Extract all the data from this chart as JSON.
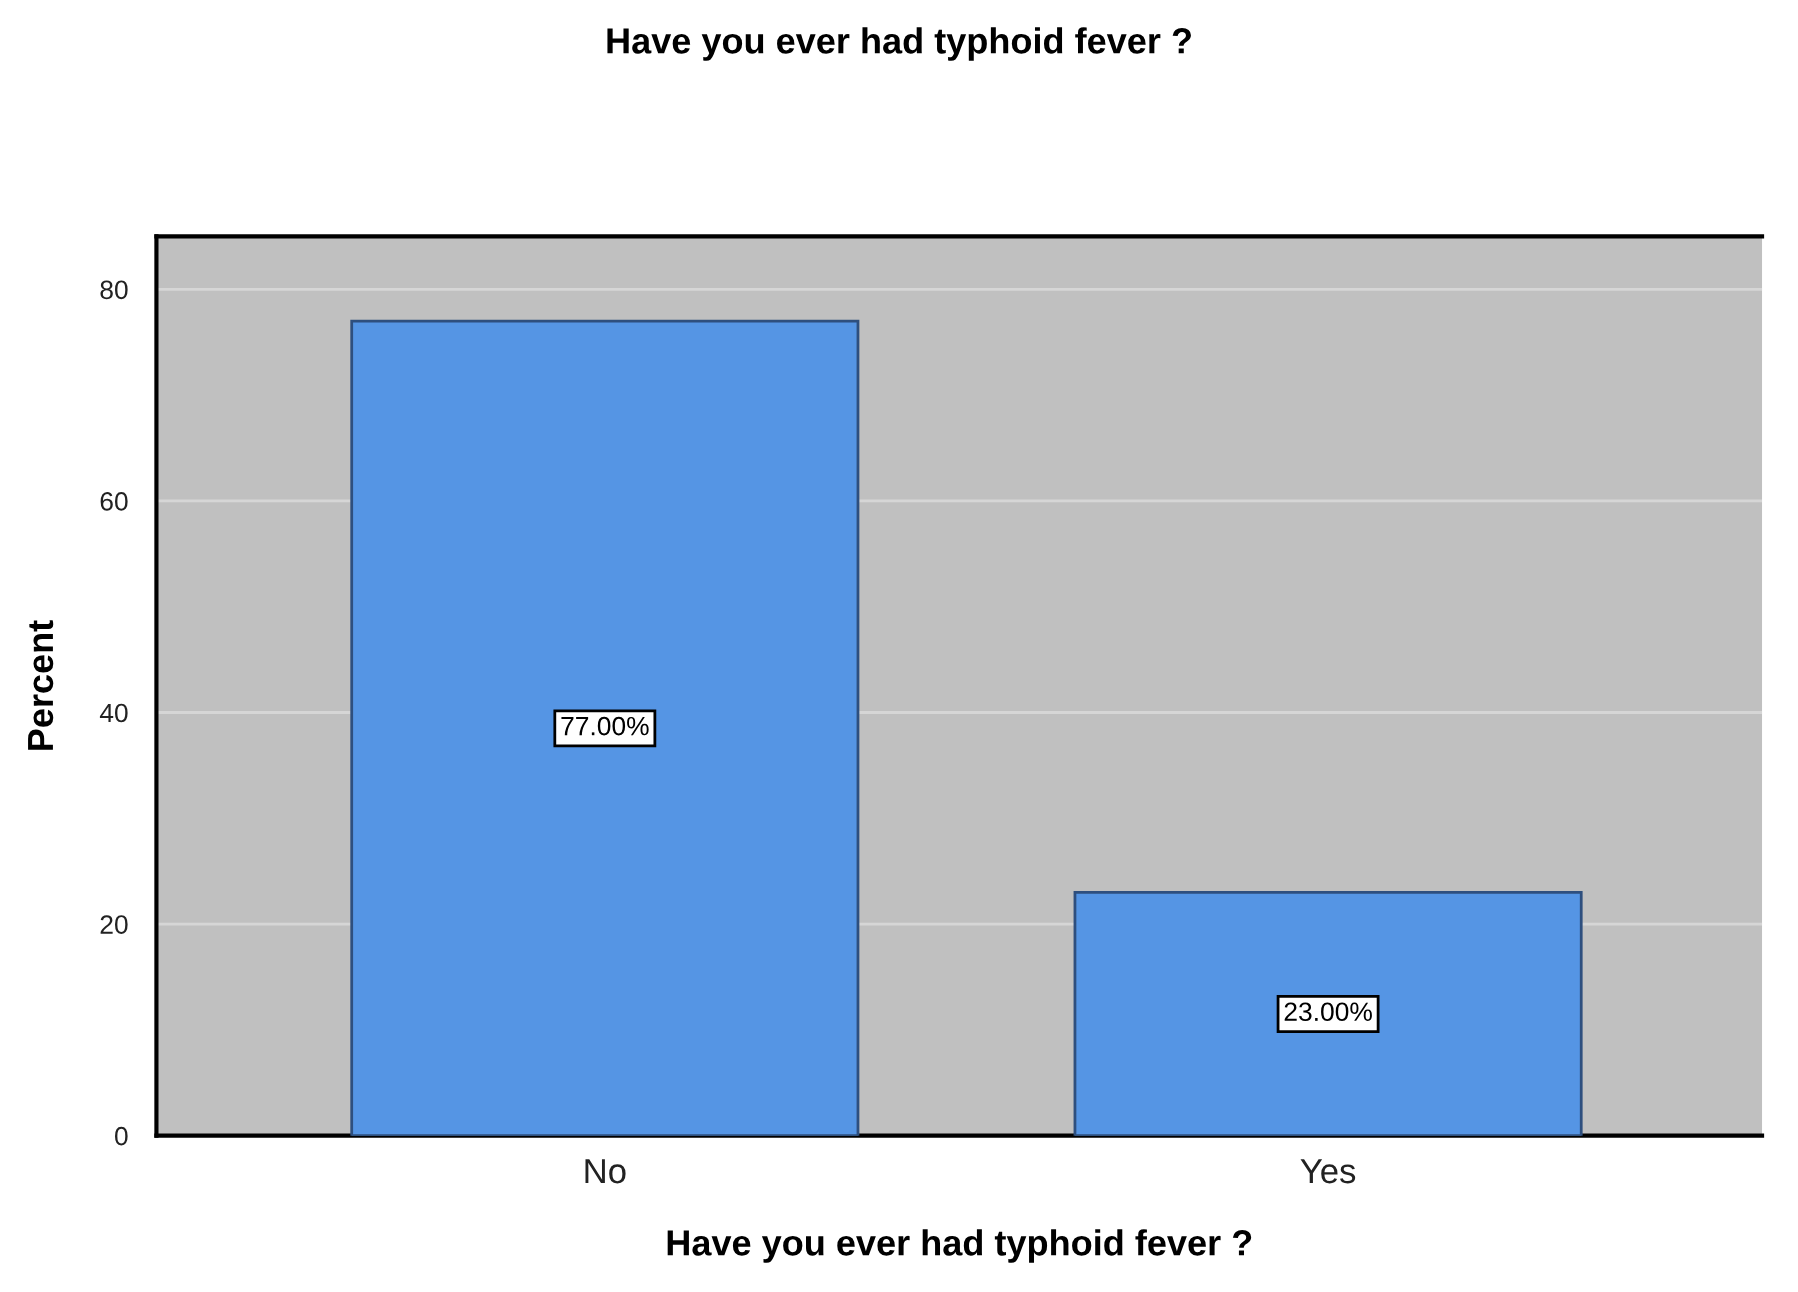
{
  "chart_data": {
    "type": "bar",
    "title": "Have you ever had typhoid fever ?",
    "xlabel": "Have you ever had typhoid fever ?",
    "ylabel": "Percent",
    "categories": [
      "No",
      "Yes"
    ],
    "values": [
      77,
      23
    ],
    "color": "#5595e4",
    "value_labels": [
      "77.00%",
      "23.00%"
    ],
    "ylim": [
      0,
      85
    ],
    "yticks": [
      0,
      20,
      40,
      60,
      80
    ],
    "grid": "y"
  }
}
